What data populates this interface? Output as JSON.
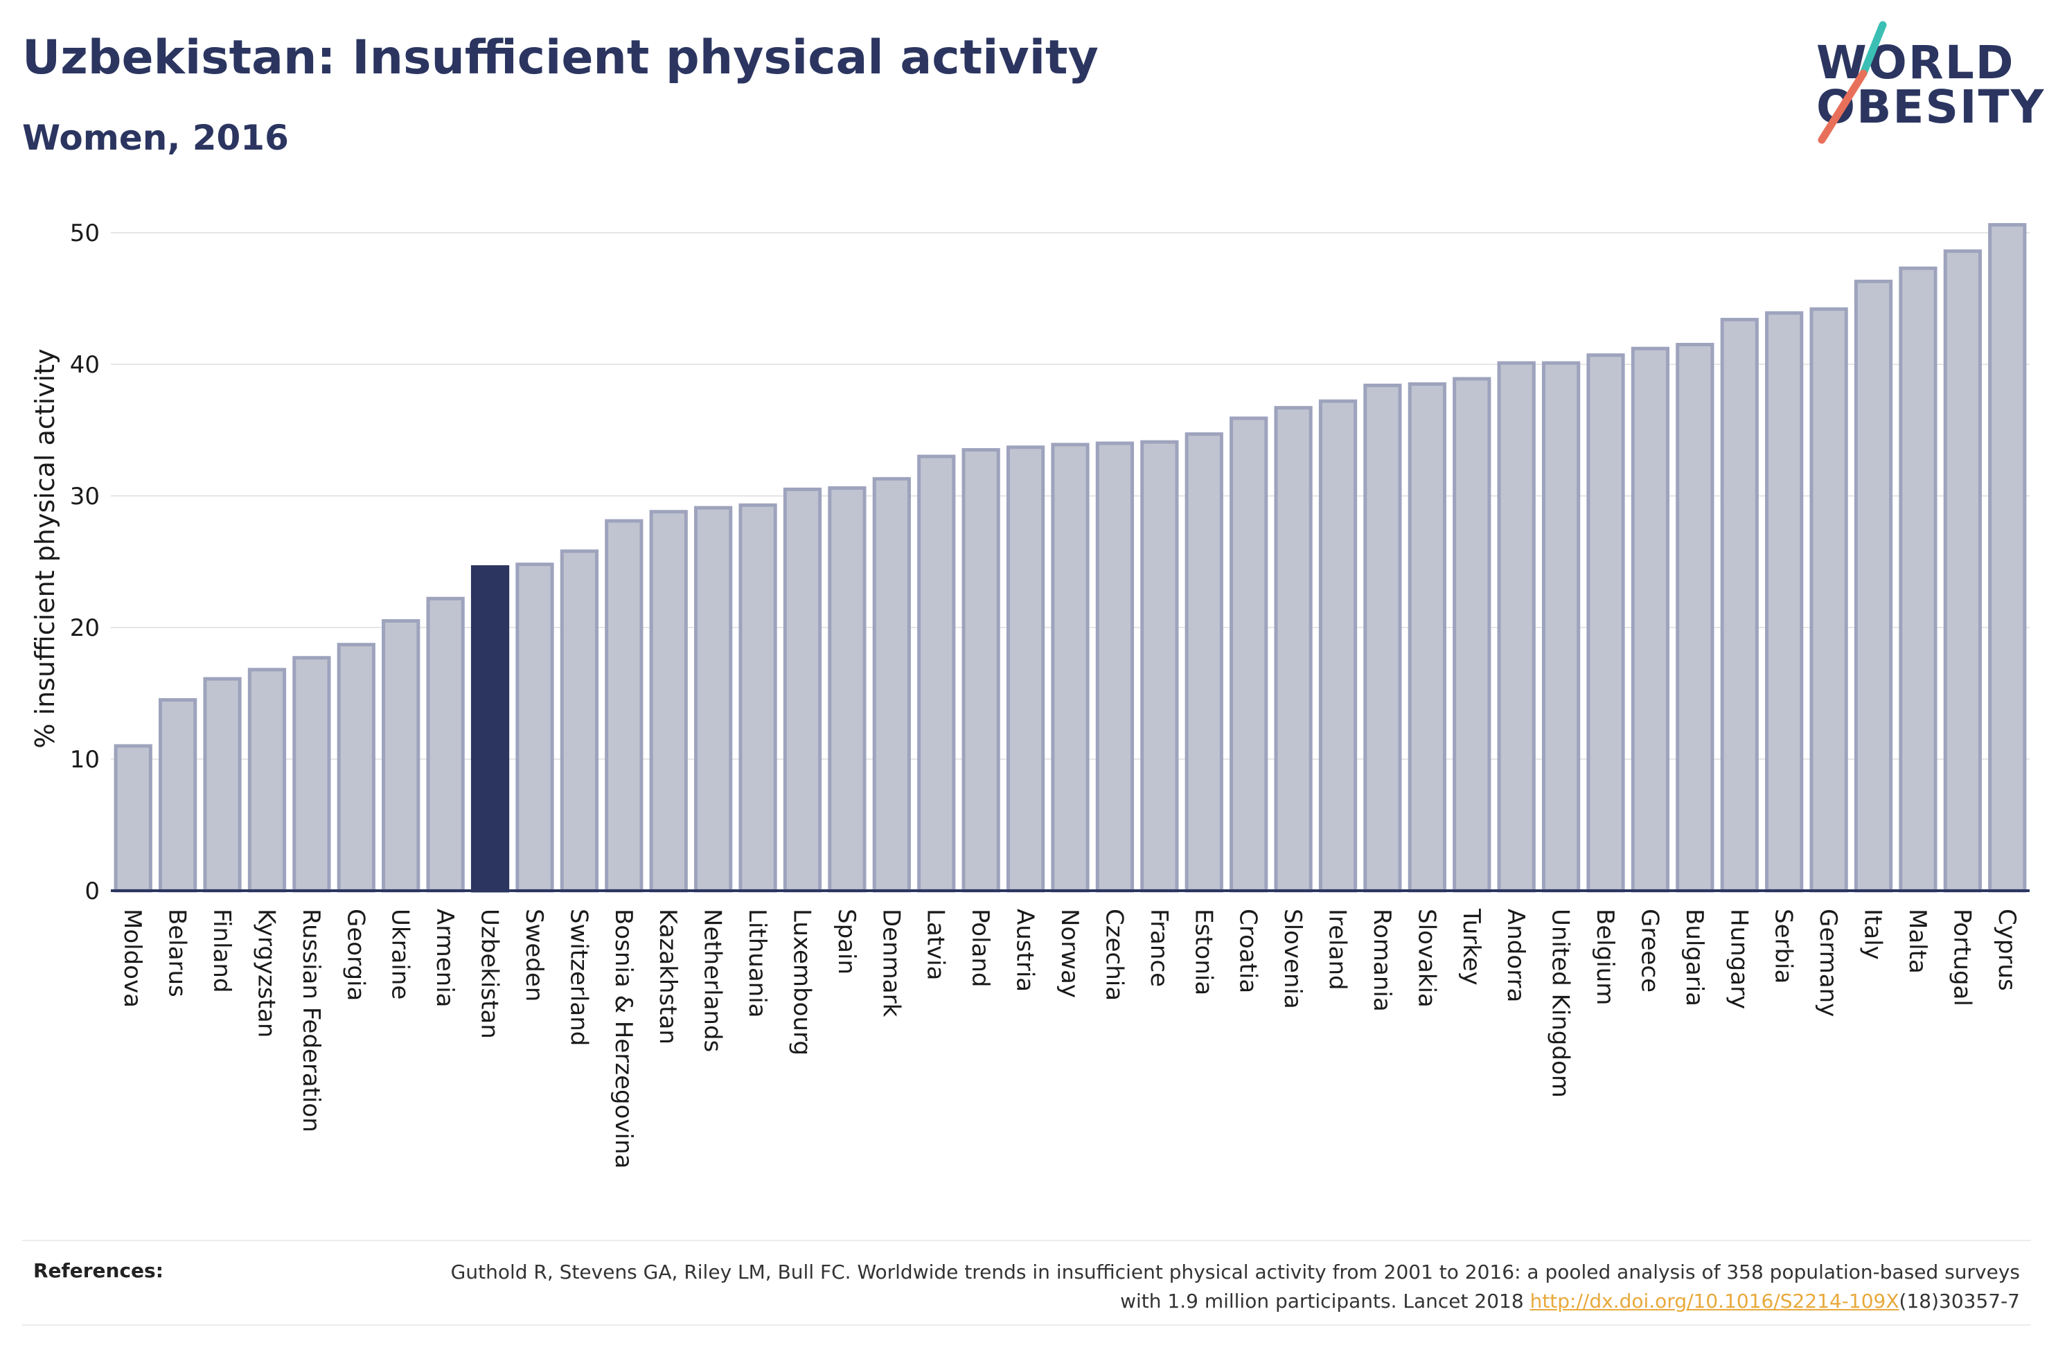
{
  "header": {
    "title": "Uzbekistan: Insufficient physical activity",
    "subtitle": "Women, 2016"
  },
  "logo": {
    "line1": "WORLD",
    "line2": "OBESITY",
    "colors": {
      "text": "#2b3560",
      "slash_teal": "#3bbfb4",
      "slash_red": "#e8705a"
    }
  },
  "colors": {
    "bar_default": "#c0c4d0",
    "bar_default_stroke": "#9ea3bd",
    "bar_highlight": "#2b3560",
    "axis": "#2b3560",
    "grid": "#e6e6e6"
  },
  "chart_data": {
    "type": "bar",
    "ylabel": "% insufficient physical activity",
    "ylim": [
      0,
      52
    ],
    "yticks": [
      0,
      10,
      20,
      30,
      40,
      50
    ],
    "grid": true,
    "highlight": "Uzbekistan",
    "categories": [
      "Moldova",
      "Belarus",
      "Finland",
      "Kyrgyzstan",
      "Russian Federation",
      "Georgia",
      "Ukraine",
      "Armenia",
      "Uzbekistan",
      "Sweden",
      "Switzerland",
      "Bosnia & Herzegovina",
      "Kazakhstan",
      "Netherlands",
      "Lithuania",
      "Luxembourg",
      "Spain",
      "Denmark",
      "Latvia",
      "Poland",
      "Austria",
      "Norway",
      "Czechia",
      "France",
      "Estonia",
      "Croatia",
      "Slovenia",
      "Ireland",
      "Romania",
      "Slovakia",
      "Turkey",
      "Andorra",
      "United Kingdom",
      "Belgium",
      "Greece",
      "Bulgaria",
      "Hungary",
      "Serbia",
      "Germany",
      "Italy",
      "Malta",
      "Portugal",
      "Cyprus"
    ],
    "values": [
      11.0,
      14.5,
      16.1,
      16.8,
      17.7,
      18.7,
      20.5,
      22.2,
      24.6,
      24.8,
      25.8,
      28.1,
      28.8,
      29.1,
      29.3,
      30.5,
      30.6,
      31.3,
      33.0,
      33.5,
      33.7,
      33.9,
      34.0,
      34.1,
      34.7,
      35.9,
      36.7,
      37.2,
      38.4,
      38.5,
      38.9,
      40.1,
      40.1,
      40.7,
      41.2,
      41.5,
      43.4,
      43.9,
      44.2,
      46.3,
      47.3,
      48.6,
      50.6
    ]
  },
  "references": {
    "label": "References:",
    "text_before": "Guthold R, Stevens GA, Riley LM, Bull FC. Worldwide trends in insufficient physical activity from 2001 to 2016: a pooled analysis of 358 population-based surveys with 1.9 million participants. Lancet 2018 ",
    "link": "http://dx.doi.org/10.1016/S2214-109X",
    "text_after": "(18)30357-7"
  }
}
